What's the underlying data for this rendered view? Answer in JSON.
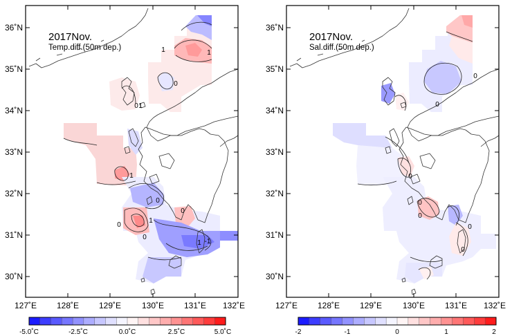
{
  "maps": [
    {
      "id": "temp",
      "title": "2017Nov.",
      "subtitle": "Temp.diff.(50m dep.)",
      "x_ticks": [
        "127˚E",
        "128˚E",
        "129˚E",
        "130˚E",
        "131˚E",
        "132˚E"
      ],
      "y_ticks": [
        "30˚N",
        "31˚N",
        "32˚N",
        "33˚N",
        "34˚N",
        "35˚N",
        "36˚N"
      ],
      "contour_labels": [
        "1",
        "1",
        "0",
        "0",
        "1",
        "1",
        "0",
        "0",
        "1",
        "0",
        "0",
        "1",
        "-1"
      ],
      "colorbar": {
        "ticks": [
          "-5.0˚C",
          "-2.5˚C",
          "0.0˚C",
          "2.5˚C",
          "5.0˚C"
        ],
        "colors": [
          "#1c1cff",
          "#3d3dff",
          "#5a5aff",
          "#7676ff",
          "#9292ff",
          "#adadff",
          "#c7c7ff",
          "#e0e0ff",
          "#f5f5ff",
          "#fff5f5",
          "#ffe0e0",
          "#ffc7c7",
          "#ffadad",
          "#ff9292",
          "#ff7676",
          "#ff5a5a",
          "#ff3d3d",
          "#ff1c1c"
        ]
      }
    },
    {
      "id": "sal",
      "title": "2017Nov.",
      "subtitle": "Sal.diff.(50m dep.)",
      "x_ticks": [
        "127˚E",
        "128˚E",
        "129˚E",
        "130˚E",
        "131˚E",
        "132˚E"
      ],
      "y_ticks": [
        "30˚N",
        "31˚N",
        "32˚N",
        "33˚N",
        "34˚N",
        "35˚N",
        "36˚N"
      ],
      "contour_labels": [
        "0",
        "0",
        "0",
        "0",
        "0",
        "0",
        "0"
      ],
      "colorbar": {
        "ticks": [
          "-2",
          "-1",
          "0",
          "1",
          "2"
        ],
        "colors": [
          "#1c1cff",
          "#3d3dff",
          "#5a5aff",
          "#7676ff",
          "#9292ff",
          "#adadff",
          "#c7c7ff",
          "#e0e0ff",
          "#f5f5ff",
          "#fff5f5",
          "#ffe0e0",
          "#ffc7c7",
          "#ffadad",
          "#ff9292",
          "#ff7676",
          "#ff5a5a",
          "#ff3d3d",
          "#ff1c1c"
        ]
      }
    }
  ]
}
